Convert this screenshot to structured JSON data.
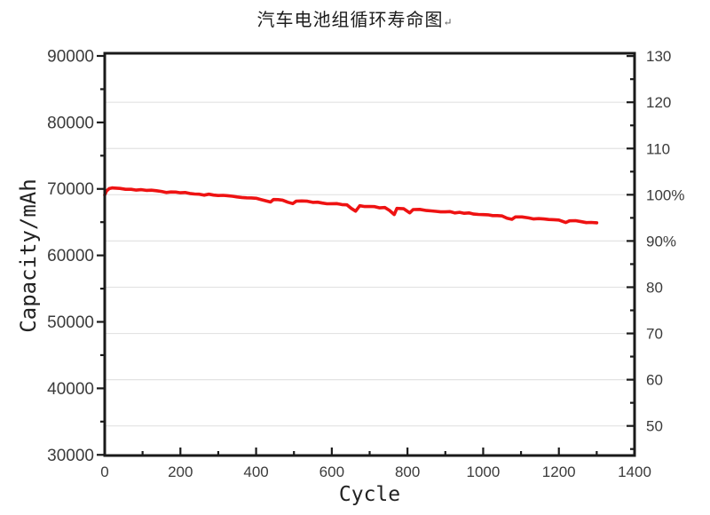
{
  "title": {
    "text": "汽车电池组循环寿命图",
    "return_mark": "↵"
  },
  "chart_data": {
    "type": "line",
    "title": "汽车电池组循环寿命图",
    "xlabel": "Cycle",
    "ylabel_left": "Capacity/mAh",
    "grid": "horizontal-on-right-axis-majors",
    "legend": "none",
    "x_axis": {
      "range": [
        0,
        1400
      ],
      "major_ticks": [
        0,
        200,
        400,
        600,
        800,
        1000,
        1200,
        1400
      ],
      "major_tick_labels": [
        "0",
        "200",
        "400",
        "600",
        "800",
        "1000",
        "1200",
        "1400"
      ],
      "minor_step": 100
    },
    "left_axis": {
      "plot_range_top": 90400,
      "plot_range_bottom": 29900,
      "major_ticks": [
        90000,
        80000,
        70000,
        60000,
        50000,
        40000,
        30000
      ],
      "major_tick_labels": [
        "90000",
        "80000",
        "70000",
        "60000",
        "50000",
        "40000",
        "30000"
      ],
      "minor_step": 5000
    },
    "right_axis": {
      "plot_range_top": 130.6,
      "plot_range_bottom": 43.6,
      "major_ticks": [
        130,
        120,
        110,
        100,
        90,
        80,
        70,
        60,
        50
      ],
      "major_tick_labels": [
        "130",
        "120",
        "110",
        "100%",
        "90%",
        "80",
        "70",
        "60",
        "50"
      ],
      "minor_step": 5,
      "gridline_values": [
        120,
        110,
        100,
        90,
        80,
        70,
        60,
        50
      ]
    },
    "series": [
      {
        "name": "capacity",
        "color": "#ee1212",
        "axis": "left",
        "points": [
          [
            0,
            69100
          ],
          [
            5,
            69700
          ],
          [
            12,
            70050
          ],
          [
            20,
            70150
          ],
          [
            40,
            70070
          ],
          [
            70,
            69945
          ],
          [
            110,
            69780
          ],
          [
            150,
            69617
          ],
          [
            200,
            69412
          ],
          [
            250,
            69207
          ],
          [
            300,
            69002
          ],
          [
            350,
            68797
          ],
          [
            400,
            68592
          ],
          [
            438,
            68030
          ],
          [
            446,
            68403
          ],
          [
            470,
            68305
          ],
          [
            497,
            67790
          ],
          [
            506,
            68157
          ],
          [
            550,
            67977
          ],
          [
            600,
            67772
          ],
          [
            640,
            67608
          ],
          [
            663,
            66650
          ],
          [
            674,
            67469
          ],
          [
            700,
            67362
          ],
          [
            740,
            67198
          ],
          [
            765,
            66150
          ],
          [
            772,
            67067
          ],
          [
            790,
            67019
          ],
          [
            806,
            66400
          ],
          [
            815,
            66891
          ],
          [
            850,
            66748
          ],
          [
            900,
            66542
          ],
          [
            950,
            66337
          ],
          [
            1000,
            66132
          ],
          [
            1050,
            65927
          ],
          [
            1076,
            65430
          ],
          [
            1085,
            65784
          ],
          [
            1120,
            65640
          ],
          [
            1160,
            65476
          ],
          [
            1200,
            65312
          ],
          [
            1218,
            64950
          ],
          [
            1228,
            65197
          ],
          [
            1260,
            65064
          ],
          [
            1285,
            64961
          ],
          [
            1300,
            64900
          ]
        ]
      }
    ],
    "colors": {
      "line": "#ee1212",
      "axis": "#1a1a1a",
      "tick_labels": "#3b3b3b",
      "gridline": "#e3e3e3",
      "background": "#ffffff"
    }
  }
}
